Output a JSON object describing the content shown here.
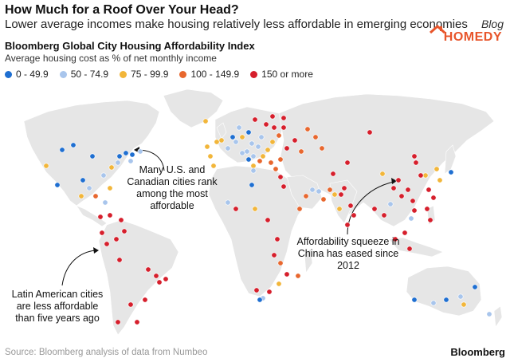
{
  "header": {
    "title": "How Much for a Roof Over Your Head?",
    "subtitle": "Lower average incomes make housing relatively less affordable in emerging economies"
  },
  "chart": {
    "title": "Bloomberg Global City Housing Affordability Index",
    "subtitle": "Average housing cost as % of net monthly income"
  },
  "legend": [
    {
      "label": "0 - 49.9",
      "color": "#1f6fd1"
    },
    {
      "label": "50 - 74.9",
      "color": "#a8c5ec"
    },
    {
      "label": "75 - 99.9",
      "color": "#f2b63a"
    },
    {
      "label": "100 - 149.9",
      "color": "#e8672e"
    },
    {
      "label": "150 or more",
      "color": "#d61f2c"
    }
  ],
  "watermark": {
    "blog": "Blog",
    "name": "HOMEDY"
  },
  "annotations": {
    "us_canada": "Many U.S. and Canadian cities rank among the most affordable",
    "latin_america": "Latin American cities are less affordable than five years ago",
    "china": "Affordability squeeze in China has eased since 2012"
  },
  "footer": {
    "source": "Source: Bloomberg analysis of data from Numbeo",
    "brand": "Bloomberg"
  },
  "map": {
    "land_color": "#e6e6e6",
    "border_color": "#ffffff",
    "dot_outline": "#ffffff"
  }
}
